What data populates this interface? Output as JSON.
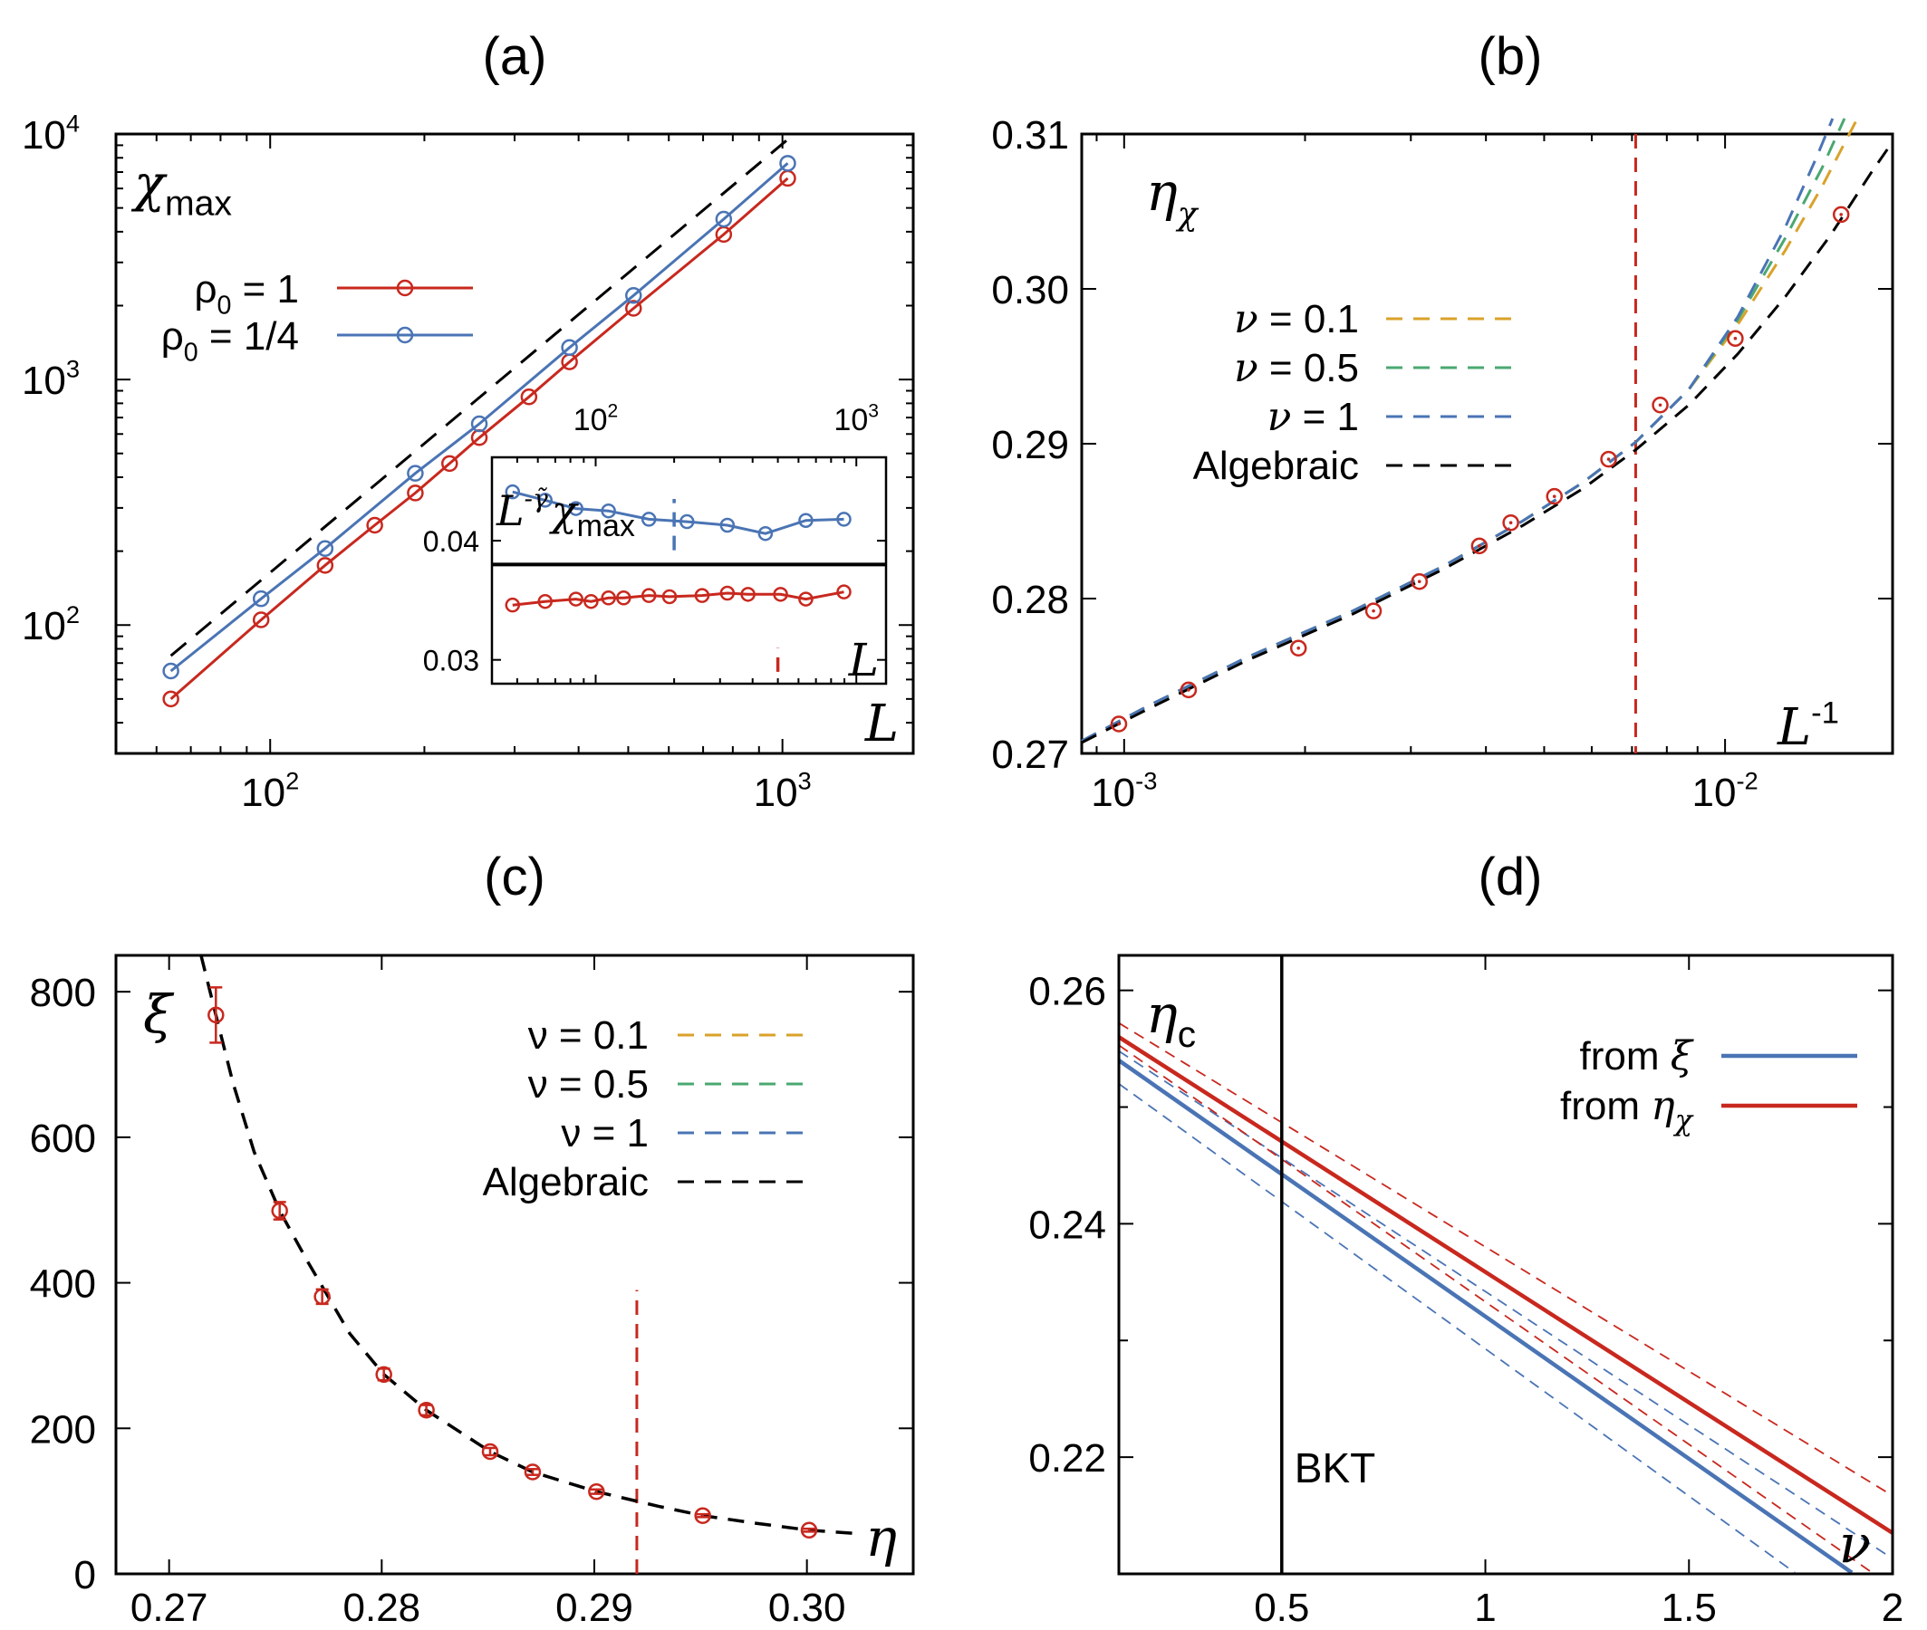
{
  "colors": {
    "red": "#c8281e",
    "blue": "#4a74b4",
    "yellow": "#d9a22a",
    "green": "#4aa870",
    "black": "#000000"
  },
  "chart_data": [
    {
      "panel": "(a)",
      "type": "line",
      "ylabel": "χ",
      "ylabel_sub": "max",
      "xlabel": "L",
      "x_scale": "log",
      "y_scale": "log",
      "xlim": [
        50,
        1800
      ],
      "ylim": [
        30,
        10000
      ],
      "x_ticks": [
        {
          "v": 100,
          "b": "10",
          "e": "2"
        },
        {
          "v": 1000,
          "b": "10",
          "e": "3"
        }
      ],
      "y_ticks": [
        {
          "v": 100,
          "b": "10",
          "e": "2"
        },
        {
          "v": 1000,
          "b": "10",
          "e": "3"
        },
        {
          "v": 10000,
          "b": "10",
          "e": "4"
        }
      ],
      "legend_position": "top-left",
      "series": [
        {
          "name": "ρ0 = 1",
          "label_main": "ρ",
          "label_sub": "0",
          "label_rest": " = 1",
          "color": "#c8281e",
          "x": [
            64,
            96,
            128,
            160,
            192,
            224,
            256,
            320,
            384,
            512,
            768,
            1024
          ],
          "y": [
            50,
            105,
            175,
            255,
            345,
            455,
            580,
            850,
            1180,
            1950,
            3900,
            6600
          ]
        },
        {
          "name": "ρ0 = 1/4",
          "label_main": "ρ",
          "label_sub": "0",
          "label_rest": " = 1/4",
          "color": "#4a74b4",
          "x": [
            64,
            96,
            128,
            192,
            256,
            384,
            512,
            768,
            1024
          ],
          "y": [
            65,
            128,
            205,
            415,
            660,
            1350,
            2200,
            4500,
            7600
          ]
        },
        {
          "name": "guide",
          "color": "#000000",
          "dash": true,
          "markers": false,
          "x": [
            64,
            1024
          ],
          "y": [
            75,
            9500
          ]
        }
      ],
      "inset": {
        "ylabel_main": "L",
        "ylabel_sup": "-γ̃",
        "ylabel_rest": "χ",
        "ylabel_sub": "max",
        "xlabel": "L",
        "x_scale": "log",
        "xlim": [
          40,
          1300
        ],
        "ylim": [
          0.028,
          0.047
        ],
        "x_ticks": [
          {
            "v": 100,
            "b": "10",
            "e": "2"
          },
          {
            "v": 1000,
            "b": "10",
            "e": "3"
          }
        ],
        "y_ticks": [
          {
            "v": 0.03,
            "label": "0.03"
          },
          {
            "v": 0.04,
            "label": "0.04"
          }
        ],
        "hline": 0.038,
        "vlines": [
          {
            "x": 500,
            "y0": 0.029,
            "y1": 0.031,
            "color": "#c8281e"
          },
          {
            "x": 200,
            "y0": 0.0392,
            "y1": 0.0435,
            "color": "#4a74b4"
          }
        ],
        "series": [
          {
            "name": "ρ0 = 1/4",
            "color": "#4a74b4",
            "x": [
              48,
              64,
              84,
              112,
              160,
              224,
              320,
              448,
              640,
              896
            ],
            "y": [
              0.0441,
              0.0434,
              0.0427,
              0.0425,
              0.0418,
              0.0416,
              0.0413,
              0.0406,
              0.0417,
              0.0418
            ]
          },
          {
            "name": "ρ0 = 1",
            "color": "#c8281e",
            "x": [
              48,
              64,
              84,
              96,
              112,
              128,
              160,
              192,
              256,
              320,
              384,
              512,
              640,
              896
            ],
            "y": [
              0.0346,
              0.0349,
              0.0351,
              0.0349,
              0.0352,
              0.0352,
              0.0354,
              0.0353,
              0.0354,
              0.0356,
              0.0355,
              0.0355,
              0.0351,
              0.0357
            ]
          }
        ]
      }
    },
    {
      "panel": "(b)",
      "type": "line",
      "ylabel": "η",
      "ylabel_sub": "χ",
      "xlabel_main": "L",
      "xlabel_sup": "-1",
      "x_scale": "log",
      "xlim": [
        0.00085,
        0.019
      ],
      "ylim": [
        0.27,
        0.31
      ],
      "x_ticks": [
        {
          "v": 0.001,
          "b": "10",
          "e": "-3"
        },
        {
          "v": 0.01,
          "b": "10",
          "e": "-2"
        }
      ],
      "y_ticks": [
        {
          "v": 0.27,
          "label": "0.27"
        },
        {
          "v": 0.28,
          "label": "0.28"
        },
        {
          "v": 0.29,
          "label": "0.29"
        },
        {
          "v": 0.3,
          "label": "0.30"
        },
        {
          "v": 0.31,
          "label": "0.31"
        }
      ],
      "vline": {
        "x": 0.0071,
        "color": "#c8281e"
      },
      "points": {
        "color": "#c8281e",
        "x": [
          0.00098,
          0.00128,
          0.00195,
          0.0026,
          0.0031,
          0.0039,
          0.0044,
          0.0052,
          0.0064,
          0.0078,
          0.0104,
          0.0156
        ],
        "y": [
          0.2719,
          0.2741,
          0.2768,
          0.2792,
          0.2811,
          0.2834,
          0.2849,
          0.2866,
          0.289,
          0.2925,
          0.2968,
          0.3048
        ]
      },
      "series": [
        {
          "name": "ν = 0.1",
          "legend_name": "ν",
          "legend_value": " = 0.1",
          "color": "#d9a22a",
          "x": [
            0.00085,
            0.0011,
            0.0016,
            0.0024,
            0.0034,
            0.0046,
            0.0058,
            0.0071,
            0.0087,
            0.0105,
            0.0126,
            0.0145,
            0.0166
          ],
          "y": [
            0.2708,
            0.2731,
            0.2762,
            0.2792,
            0.2821,
            0.285,
            0.2875,
            0.2901,
            0.2935,
            0.2977,
            0.3025,
            0.3066,
            0.311
          ]
        },
        {
          "name": "ν = 0.5",
          "legend_name": "ν",
          "legend_value": " = 0.5",
          "color": "#4aa870",
          "x": [
            0.00085,
            0.0011,
            0.0016,
            0.0024,
            0.0034,
            0.0046,
            0.0058,
            0.0071,
            0.0087,
            0.0105,
            0.0126,
            0.0145,
            0.0158
          ],
          "y": [
            0.2708,
            0.2731,
            0.2762,
            0.2792,
            0.2821,
            0.285,
            0.2875,
            0.2901,
            0.2935,
            0.298,
            0.3033,
            0.3078,
            0.311
          ]
        },
        {
          "name": "ν = 1",
          "legend_name": "ν",
          "legend_value": " = 1",
          "color": "#4a74b4",
          "x": [
            0.00085,
            0.0011,
            0.0016,
            0.0024,
            0.0034,
            0.0046,
            0.0058,
            0.0071,
            0.0087,
            0.0105,
            0.0126,
            0.0142,
            0.0151
          ],
          "y": [
            0.2708,
            0.2731,
            0.2762,
            0.2792,
            0.2821,
            0.285,
            0.2875,
            0.2901,
            0.2935,
            0.2982,
            0.304,
            0.3085,
            0.311
          ]
        },
        {
          "name": "Algebraic",
          "legend_name": "Algebraic",
          "legend_value": "",
          "color": "#000000",
          "x": [
            0.00085,
            0.0011,
            0.0016,
            0.0024,
            0.0034,
            0.0046,
            0.0058,
            0.0071,
            0.0087,
            0.0105,
            0.0126,
            0.015,
            0.0175,
            0.019
          ],
          "y": [
            0.2707,
            0.2729,
            0.276,
            0.279,
            0.2819,
            0.2847,
            0.2871,
            0.2896,
            0.2925,
            0.2958,
            0.2995,
            0.3035,
            0.3075,
            0.3095
          ]
        }
      ]
    },
    {
      "panel": "(c)",
      "type": "line",
      "ylabel": "ξ",
      "xlabel": "η",
      "xlim": [
        0.2675,
        0.305
      ],
      "ylim": [
        0,
        850
      ],
      "x_ticks": [
        {
          "v": 0.27,
          "label": "0.27"
        },
        {
          "v": 0.28,
          "label": "0.28"
        },
        {
          "v": 0.29,
          "label": "0.29"
        },
        {
          "v": 0.3,
          "label": "0.30"
        }
      ],
      "y_ticks": [
        {
          "v": 0,
          "label": "0"
        },
        {
          "v": 200,
          "label": "200"
        },
        {
          "v": 400,
          "label": "400"
        },
        {
          "v": 600,
          "label": "600"
        },
        {
          "v": 800,
          "label": "800"
        }
      ],
      "vline": {
        "x": 0.292,
        "y0": 0,
        "y1": 390,
        "color": "#c8281e"
      },
      "points": {
        "color": "#c8281e",
        "x": [
          0.2722,
          0.2752,
          0.2772,
          0.2801,
          0.2821,
          0.2851,
          0.2871,
          0.2901,
          0.2951,
          0.3001
        ],
        "y": [
          768,
          499,
          381,
          274,
          225,
          168,
          140,
          113,
          80,
          60
        ],
        "err": [
          38,
          12,
          10,
          8,
          7,
          5,
          4,
          3,
          2,
          2
        ]
      },
      "series": [
        {
          "name": "ν = 0.1",
          "legend_name": "ν",
          "legend_value": " = 0.1",
          "color": "#d9a22a",
          "x": [],
          "y": []
        },
        {
          "name": "ν = 0.5",
          "legend_name": "ν",
          "legend_value": " = 0.5",
          "color": "#4aa870",
          "x": [],
          "y": []
        },
        {
          "name": "ν = 1",
          "legend_name": "ν",
          "legend_value": " = 1",
          "color": "#4a74b4",
          "x": [],
          "y": []
        },
        {
          "name": "Algebraic",
          "legend_name": "Algebraic",
          "legend_value": "",
          "color": "#000000",
          "x": [
            0.2715,
            0.2722,
            0.273,
            0.274,
            0.2752,
            0.2765,
            0.2785,
            0.2801,
            0.2821,
            0.2851,
            0.2871,
            0.2901,
            0.293,
            0.2951,
            0.2975,
            0.3001,
            0.3025
          ],
          "y": [
            850,
            768,
            675,
            580,
            499,
            430,
            330,
            274,
            225,
            168,
            140,
            113,
            93,
            80,
            70,
            60,
            55
          ]
        }
      ]
    },
    {
      "panel": "(d)",
      "type": "line",
      "ylabel": "η",
      "ylabel_sub": "c",
      "xlabel": "ν",
      "xlim": [
        0.1,
        2
      ],
      "ylim": [
        0.21,
        0.263
      ],
      "x_ticks": [
        {
          "v": 0.5,
          "label": "0.5"
        },
        {
          "v": 1,
          "label": "1"
        },
        {
          "v": 1.5,
          "label": "1.5"
        },
        {
          "v": 2,
          "label": "2"
        }
      ],
      "y_ticks": [
        {
          "v": 0.22,
          "label": "0.22"
        },
        {
          "v": 0.24,
          "label": "0.24"
        },
        {
          "v": 0.26,
          "label": "0.26"
        }
      ],
      "minor_y_ticks": [
        0.23,
        0.25
      ],
      "vline": {
        "x": 0.5,
        "label": "BKT"
      },
      "series": [
        {
          "name": "from ξ",
          "legend_name": "from ",
          "legend_sym": "ξ",
          "legend_sub": "",
          "color": "#4a74b4",
          "width": 4.5,
          "x": [
            0.1,
            1.9
          ],
          "y": [
            0.254,
            0.2101
          ]
        },
        {
          "name": "from ηχ",
          "legend_name": "from ",
          "legend_sym": "η",
          "legend_sub": "χ",
          "color": "#c8281e",
          "width": 4.5,
          "x": [
            0.1,
            2
          ],
          "y": [
            0.256,
            0.2135
          ]
        },
        {
          "name": "",
          "color": "#4a74b4",
          "dash": true,
          "width": 1.8,
          "x": [
            0.1,
            1.76
          ],
          "y": [
            0.252,
            0.2101
          ]
        },
        {
          "name": "",
          "color": "#4a74b4",
          "dash": true,
          "width": 1.8,
          "x": [
            0.1,
            2
          ],
          "y": [
            0.2548,
            0.2113
          ]
        },
        {
          "name": "",
          "color": "#c8281e",
          "dash": true,
          "width": 1.8,
          "x": [
            0.1,
            1.95
          ],
          "y": [
            0.2553,
            0.2101
          ]
        },
        {
          "name": "",
          "color": "#c8281e",
          "dash": true,
          "width": 1.8,
          "x": [
            0.1,
            2
          ],
          "y": [
            0.2572,
            0.2167
          ]
        }
      ]
    }
  ]
}
